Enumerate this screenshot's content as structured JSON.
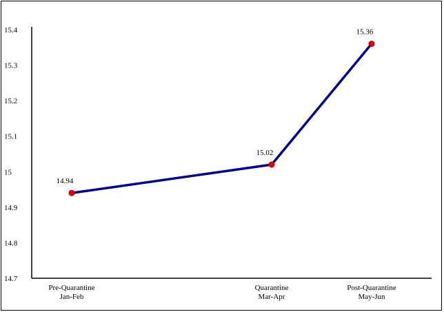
{
  "chart_data": {
    "type": "line",
    "title": "",
    "xlabel": "",
    "ylabel": "",
    "categories": [
      [
        "Pre-Quarantine",
        "Jan-Feb"
      ],
      [
        "Quarantine",
        "Mar-Apr"
      ],
      [
        "Post-Quarantine",
        "May-Jun"
      ]
    ],
    "series": [
      {
        "values": [
          14.94,
          15.02,
          15.36
        ],
        "data_labels": [
          "14.94",
          "15.02",
          "15.36"
        ]
      }
    ],
    "x_positions": [
      0.1,
      0.6,
      0.85
    ],
    "y_ticks": [
      "14.7",
      "14.8",
      "14.9",
      "15",
      "15.1",
      "15.2",
      "15.3",
      "15.4"
    ],
    "ylim": [
      14.7,
      15.4
    ],
    "grid": false,
    "legend": "none",
    "colors": {
      "line": "#00008B",
      "marker": "#e00000"
    }
  }
}
